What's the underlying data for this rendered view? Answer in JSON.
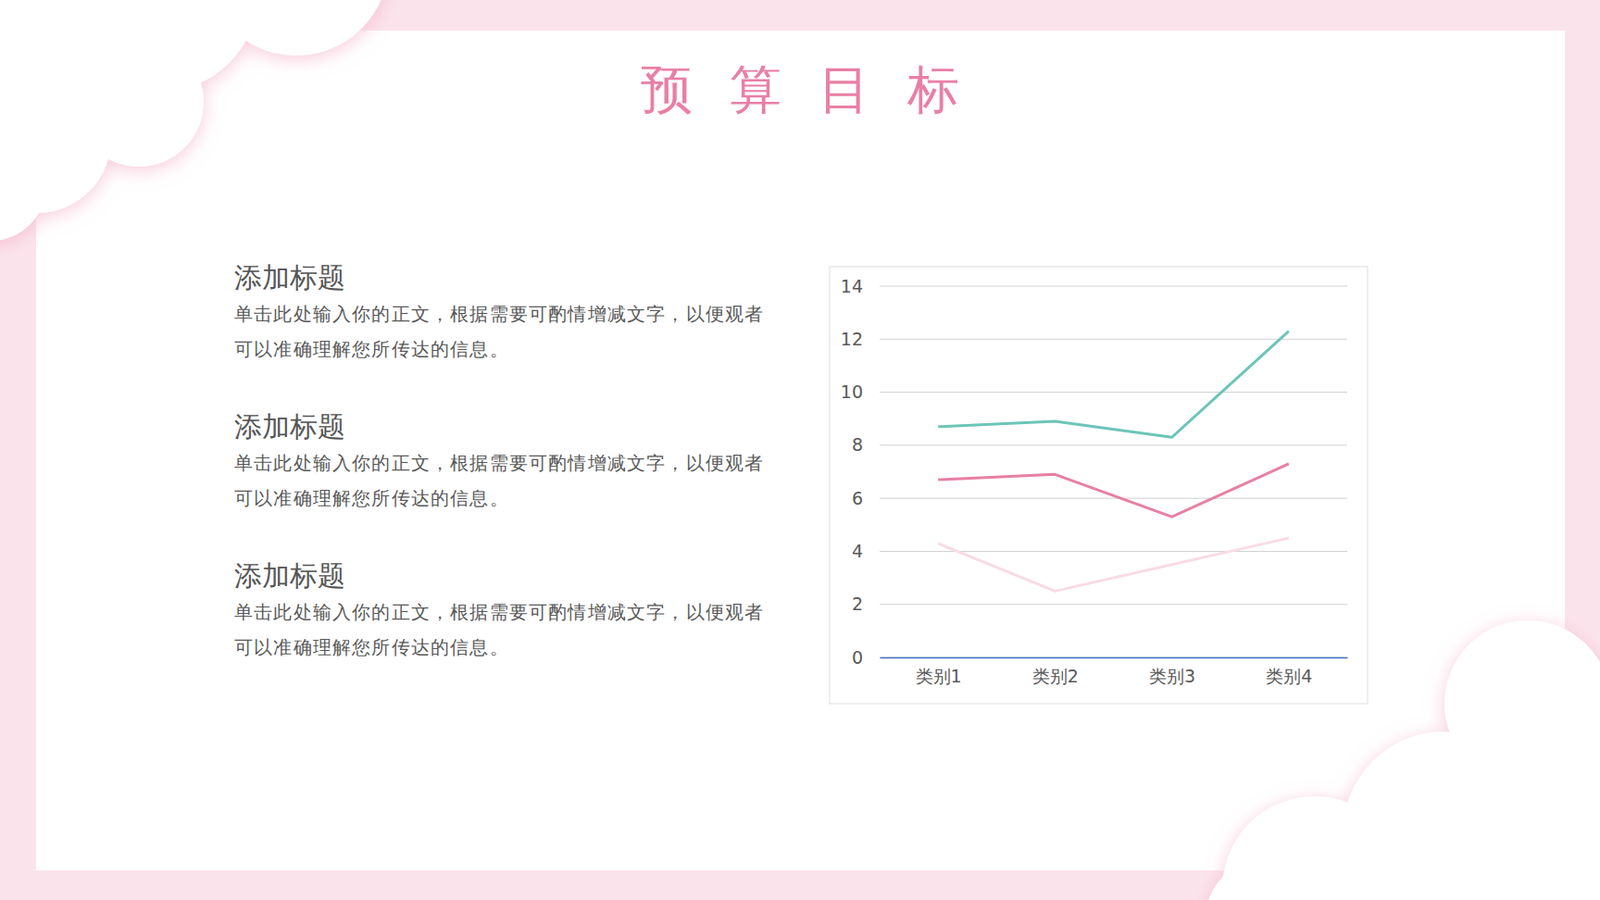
{
  "page": {
    "title": "预算目标",
    "sections": [
      {
        "heading": "添加标题",
        "body": [
          "单击此处输入你的正文，根据需要可酌情增减文字，以便观者",
          "可以准确理解您所传达的信息。"
        ]
      },
      {
        "heading": "添加标题",
        "body": [
          "单击此处输入你的正文，根据需要可酌情增减文字，以便观者",
          "可以准确理解您所传达的信息。"
        ]
      },
      {
        "heading": "添加标题",
        "body": [
          "单击此处输入你的正文，根据需要可酌情增减文字，以便观者",
          "可以准确理解您所传达的信息。"
        ]
      }
    ]
  },
  "chart_data": {
    "type": "line",
    "categories": [
      "类别1",
      "类别2",
      "类别3",
      "类别4"
    ],
    "series": [
      {
        "color": "#6cc5b8",
        "values": [
          8.7,
          8.9,
          8.3,
          12.3
        ]
      },
      {
        "color": "#e87fa4",
        "values": [
          6.7,
          6.9,
          5.3,
          7.3
        ]
      },
      {
        "color": "#f8dbe5",
        "values": [
          4.3,
          2.5,
          3.5,
          4.5
        ]
      }
    ],
    "ylim": [
      0,
      14
    ],
    "yticks": [
      0,
      2,
      4,
      6,
      8,
      10,
      12,
      14
    ],
    "grid": true
  }
}
